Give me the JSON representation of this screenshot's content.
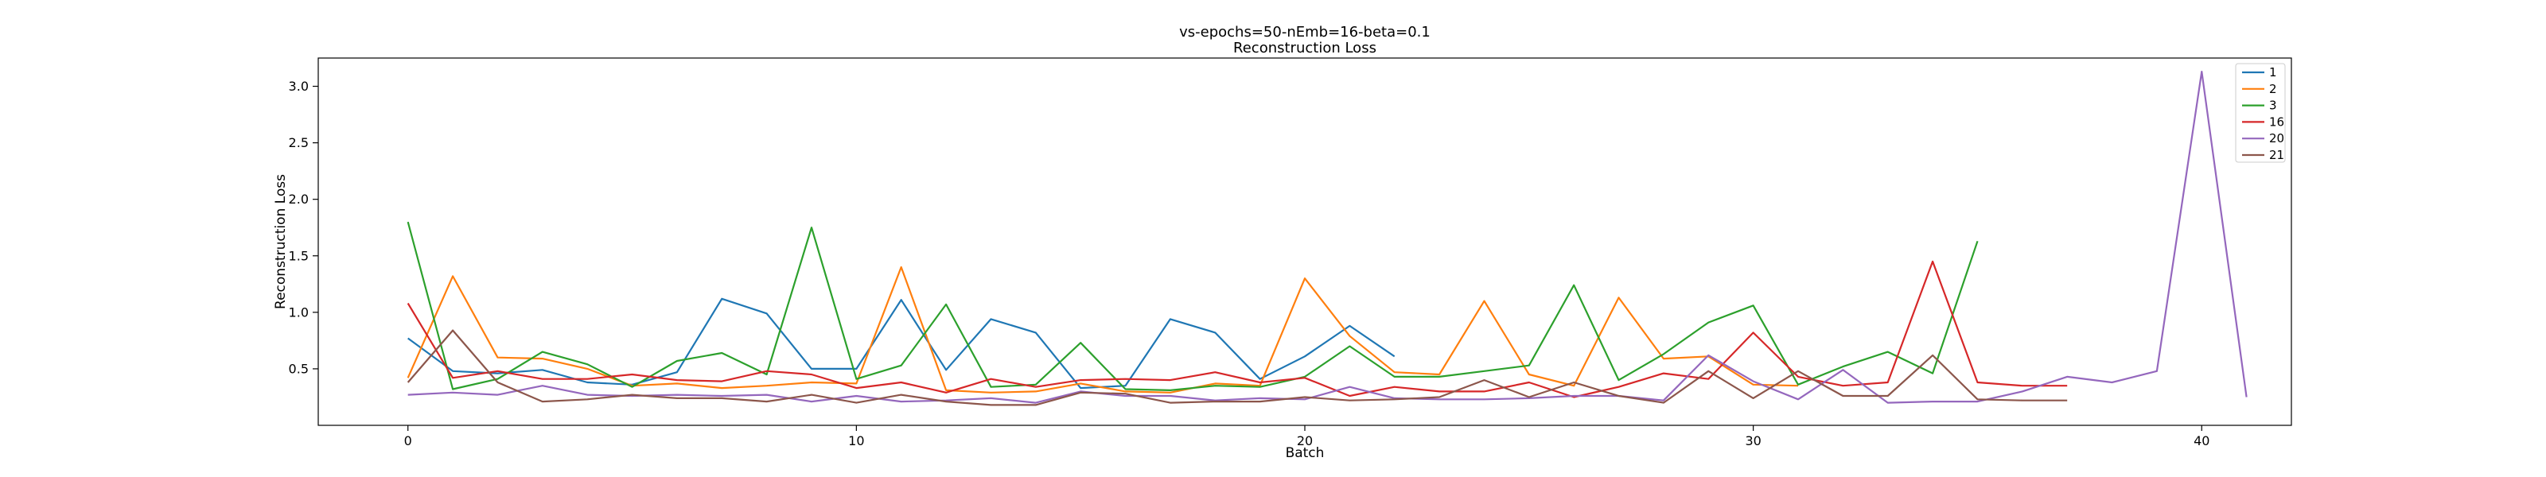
{
  "chart_data": {
    "type": "line",
    "title": "vs-epochs=50-nEmb=16-beta=0.1",
    "subtitle": "Reconstruction Loss",
    "xlabel": "Batch",
    "ylabel": "Reconstruction Loss",
    "xlim": [
      -2,
      42
    ],
    "ylim": [
      0,
      3.25
    ],
    "xticks": [
      0,
      10,
      20,
      30,
      40
    ],
    "yticks": [
      0.5,
      1.0,
      1.5,
      2.0,
      2.5,
      3.0
    ],
    "yticklabels": [
      "0.5",
      "1.0",
      "1.5",
      "2.0",
      "2.5",
      "3.0"
    ],
    "grid": false,
    "legend_position": "top-right",
    "series": [
      {
        "name": "1",
        "color": "#1f77b4",
        "y": [
          0.77,
          0.48,
          0.46,
          0.49,
          0.38,
          0.36,
          0.47,
          1.12,
          0.99,
          0.5,
          0.5,
          1.11,
          0.49,
          0.94,
          0.82,
          0.33,
          0.35,
          0.94,
          0.82,
          0.41,
          0.61,
          0.88,
          0.61
        ]
      },
      {
        "name": "2",
        "color": "#ff7f0e",
        "y": [
          0.42,
          1.32,
          0.6,
          0.59,
          0.5,
          0.35,
          0.37,
          0.33,
          0.35,
          0.38,
          0.37,
          1.4,
          0.31,
          0.29,
          0.3,
          0.37,
          0.3,
          0.29,
          0.37,
          0.35,
          1.3,
          0.79,
          0.47,
          0.45,
          1.1,
          0.45,
          0.35,
          1.13,
          0.59,
          0.61,
          0.36,
          0.35
        ]
      },
      {
        "name": "3",
        "color": "#2ca02c",
        "y": [
          1.8,
          0.32,
          0.41,
          0.65,
          0.54,
          0.34,
          0.57,
          0.64,
          0.45,
          1.75,
          0.41,
          0.53,
          1.07,
          0.34,
          0.36,
          0.73,
          0.32,
          0.31,
          0.35,
          0.34,
          0.43,
          0.7,
          0.43,
          0.43,
          0.48,
          0.53,
          1.24,
          0.4,
          0.63,
          0.91,
          1.06,
          0.36,
          0.52,
          0.65,
          0.46,
          1.63
        ]
      },
      {
        "name": "16",
        "color": "#d62728",
        "y": [
          1.08,
          0.42,
          0.48,
          0.41,
          0.41,
          0.45,
          0.4,
          0.39,
          0.48,
          0.45,
          0.33,
          0.38,
          0.29,
          0.41,
          0.34,
          0.4,
          0.41,
          0.4,
          0.47,
          0.38,
          0.42,
          0.26,
          0.34,
          0.3,
          0.3,
          0.38,
          0.25,
          0.34,
          0.46,
          0.41,
          0.82,
          0.43,
          0.35,
          0.38,
          1.45,
          0.38,
          0.35,
          0.35
        ]
      },
      {
        "name": "20",
        "color": "#9467bd",
        "y": [
          0.27,
          0.29,
          0.27,
          0.35,
          0.27,
          0.26,
          0.27,
          0.26,
          0.27,
          0.21,
          0.26,
          0.21,
          0.22,
          0.24,
          0.2,
          0.3,
          0.26,
          0.26,
          0.22,
          0.24,
          0.23,
          0.34,
          0.24,
          0.23,
          0.23,
          0.24,
          0.26,
          0.26,
          0.22,
          0.62,
          0.39,
          0.23,
          0.49,
          0.2,
          0.21,
          0.21,
          0.3,
          0.43,
          0.38,
          0.48,
          3.13,
          0.25
        ]
      },
      {
        "name": "21",
        "color": "#8c564b",
        "y": [
          0.38,
          0.84,
          0.38,
          0.21,
          0.23,
          0.27,
          0.24,
          0.24,
          0.21,
          0.27,
          0.2,
          0.27,
          0.21,
          0.18,
          0.18,
          0.29,
          0.28,
          0.2,
          0.21,
          0.21,
          0.25,
          0.22,
          0.23,
          0.25,
          0.4,
          0.25,
          0.38,
          0.26,
          0.2,
          0.48,
          0.24,
          0.48,
          0.26,
          0.26,
          0.62,
          0.23,
          0.22,
          0.22
        ]
      }
    ]
  }
}
